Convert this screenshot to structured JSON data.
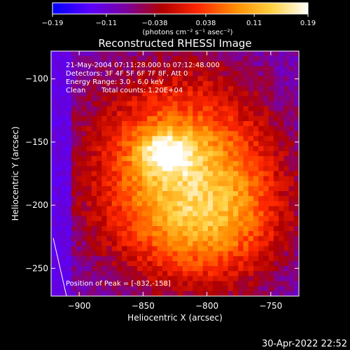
{
  "chart_data": {
    "type": "heatmap",
    "title": "Reconstructed RHESSI Image",
    "xlabel": "Heliocentric X (arcsec)",
    "ylabel": "Heliocentric Y (arcsec)",
    "xlim": [
      -922,
      -728
    ],
    "ylim": [
      -272,
      -78
    ],
    "xticks": [
      -900,
      -850,
      -800,
      -750
    ],
    "xtick_labels": [
      "−900",
      "−850",
      "−800",
      "−750"
    ],
    "yticks": [
      -100,
      -150,
      -200,
      -250
    ],
    "ytick_labels": [
      "−100",
      "−150",
      "−200",
      "−250"
    ],
    "colorbar": {
      "range": [
        -0.19,
        0.19
      ],
      "ticks": [
        -0.19,
        -0.11,
        -0.038,
        0.038,
        0.11,
        0.19
      ],
      "tick_labels": [
        "−0.19",
        "−0.11",
        "−0.038",
        "0.038",
        "0.11",
        "0.19"
      ],
      "unit_label": "(photons cm⁻² s⁻¹ asec⁻²)",
      "colors": [
        "#0000ff",
        "#5a00ff",
        "#7a00a0",
        "#b00000",
        "#ff2800",
        "#ff8c00",
        "#ffd040",
        "#ffffff"
      ]
    },
    "peak": {
      "x": -832,
      "y": -158,
      "value": 0.19
    },
    "annotations": {
      "time_range": "21-May-2004 07:11:28.000 to 07:12:48.000",
      "detectors": "Detectors: 3F 4F 5F 6F 7F 8F, Att 0",
      "energy_range": "Energy Range: 3.0 - 6.0 keV",
      "method": "Clean",
      "total_counts": "Total counts: 1.20E+04",
      "peak_label": "Position of Peak = [-832,-158]"
    }
  },
  "footer": {
    "date": "30-Apr-2022 22:52"
  }
}
